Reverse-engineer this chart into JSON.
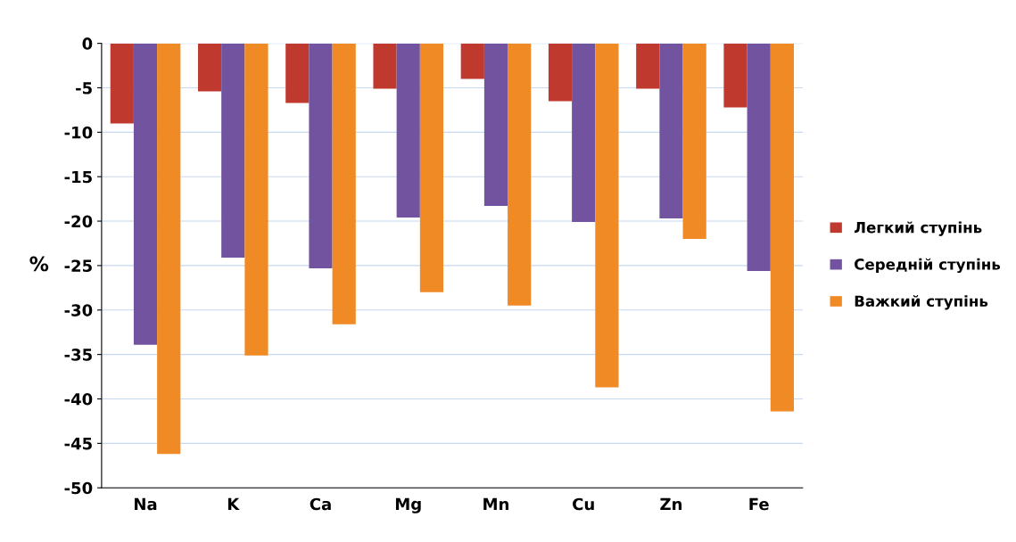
{
  "chart_data": {
    "type": "bar",
    "ylabel": "%",
    "categories": [
      "Na",
      "K",
      "Ca",
      "Mg",
      "Mn",
      "Cu",
      "Zn",
      "Fe"
    ],
    "series": [
      {
        "name": "Легкий ступінь",
        "color": "#c0392f",
        "values": [
          -9.0,
          -5.4,
          -6.7,
          -5.1,
          -4.0,
          -6.5,
          -5.1,
          -7.2
        ]
      },
      {
        "name": "Середній ступінь",
        "color": "#7153a0",
        "values": [
          -33.9,
          -24.1,
          -25.3,
          -19.6,
          -18.3,
          -20.1,
          -19.7,
          -25.6
        ]
      },
      {
        "name": "Важкий ступінь",
        "color": "#f08a24",
        "values": [
          -46.2,
          -35.1,
          -31.6,
          -28.0,
          -29.5,
          -38.7,
          -22.0,
          -41.4
        ]
      }
    ],
    "ylim": [
      -50,
      0
    ],
    "yticks": [
      -50,
      -45,
      -40,
      -35,
      -30,
      -25,
      -20,
      -15,
      -10,
      -5,
      0
    ],
    "grid": "y",
    "legend": "right"
  }
}
